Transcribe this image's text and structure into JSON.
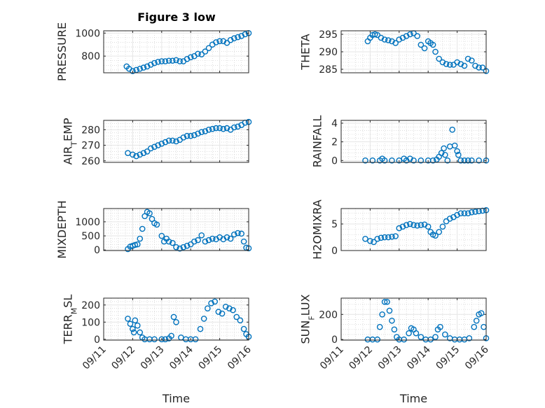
{
  "figure_title": "Figure 3 low",
  "chart_data": [
    {
      "type": "scatter",
      "ylabel": "PRESSURE",
      "xlabel": "",
      "yticks": [
        800,
        1000
      ],
      "ylim": [
        655,
        1020
      ],
      "x": [
        "09/11 19:00",
        "09/11 21:00",
        "09/12 00:00",
        "09/12 03:00",
        "09/12 06:00",
        "09/12 09:00",
        "09/12 12:00",
        "09/12 15:00",
        "09/12 18:00",
        "09/12 21:00",
        "09/13 00:00",
        "09/13 03:00",
        "09/13 06:00",
        "09/13 09:00",
        "09/13 12:00",
        "09/13 15:00",
        "09/13 18:00",
        "09/13 21:00",
        "09/14 00:00",
        "09/14 03:00",
        "09/14 06:00",
        "09/14 09:00",
        "09/14 12:00",
        "09/14 15:00",
        "09/14 18:00",
        "09/14 21:00",
        "09/15 00:00",
        "09/15 03:00",
        "09/15 06:00",
        "09/15 09:00",
        "09/15 12:00",
        "09/15 15:00",
        "09/15 18:00",
        "09/15 21:00",
        "09/16 00:00"
      ],
      "y": [
        710,
        690,
        670,
        680,
        690,
        700,
        710,
        725,
        740,
        750,
        755,
        755,
        760,
        760,
        765,
        755,
        755,
        775,
        790,
        800,
        820,
        815,
        840,
        870,
        900,
        920,
        930,
        930,
        915,
        940,
        955,
        965,
        975,
        990,
        1000
      ]
    },
    {
      "type": "scatter",
      "ylabel": "THETA",
      "xlabel": "",
      "yticks": [
        285,
        290,
        295
      ],
      "ylim": [
        284,
        296
      ],
      "x": [
        "09/11 22:00",
        "09/12 00:00",
        "09/12 02:00",
        "09/12 04:00",
        "09/12 06:00",
        "09/12 09:00",
        "09/12 12:00",
        "09/12 15:00",
        "09/12 18:00",
        "09/12 21:00",
        "09/13 00:00",
        "09/13 03:00",
        "09/13 06:00",
        "09/13 09:00",
        "09/13 12:00",
        "09/13 15:00",
        "09/13 18:00",
        "09/13 21:00",
        "09/14 00:00",
        "09/14 02:00",
        "09/14 04:00",
        "09/14 06:00",
        "09/14 09:00",
        "09/14 12:00",
        "09/14 15:00",
        "09/14 18:00",
        "09/14 21:00",
        "09/15 00:00",
        "09/15 03:00",
        "09/15 06:00",
        "09/15 09:00",
        "09/15 12:00",
        "09/15 15:00",
        "09/15 18:00",
        "09/15 21:00",
        "09/16 00:00"
      ],
      "y": [
        293,
        294,
        294.8,
        295,
        294.8,
        294,
        293.5,
        293.3,
        293,
        292.5,
        293.5,
        294,
        294.5,
        295,
        295.3,
        294.5,
        292,
        291,
        293,
        292.5,
        292,
        290,
        288,
        287,
        286.5,
        286.3,
        286.3,
        287,
        286.5,
        286,
        288,
        287.5,
        286,
        285.5,
        285.5,
        284.5
      ]
    },
    {
      "type": "scatter",
      "ylabel": "AIR_T_EMP",
      "xlabel": "",
      "yticks": [
        260,
        270,
        280
      ],
      "ylim": [
        259,
        286
      ],
      "x": [
        "09/11 20:00",
        "09/12 00:00",
        "09/12 03:00",
        "09/12 06:00",
        "09/12 09:00",
        "09/12 12:00",
        "09/12 15:00",
        "09/12 18:00",
        "09/12 21:00",
        "09/13 00:00",
        "09/13 03:00",
        "09/13 06:00",
        "09/13 09:00",
        "09/13 12:00",
        "09/13 15:00",
        "09/13 18:00",
        "09/13 21:00",
        "09/14 00:00",
        "09/14 03:00",
        "09/14 06:00",
        "09/14 09:00",
        "09/14 12:00",
        "09/14 15:00",
        "09/14 18:00",
        "09/14 21:00",
        "09/15 00:00",
        "09/15 03:00",
        "09/15 06:00",
        "09/15 09:00",
        "09/15 12:00",
        "09/15 15:00",
        "09/15 18:00",
        "09/15 21:00",
        "09/16 00:00"
      ],
      "y": [
        265,
        264,
        263,
        264,
        265,
        266,
        268,
        269,
        270,
        271,
        272,
        273,
        273,
        272.5,
        273.5,
        275,
        276,
        276,
        276.5,
        277.5,
        278.5,
        279,
        280,
        280.5,
        281,
        281,
        280.5,
        281,
        280,
        281.5,
        282,
        283,
        284.5,
        285
      ]
    },
    {
      "type": "scatter",
      "ylabel": "RAINFALL",
      "xlabel": "",
      "yticks": [
        0,
        2,
        4
      ],
      "ylim": [
        -0.2,
        4.3
      ],
      "x": [
        "09/11 20:00",
        "09/12 02:00",
        "09/12 08:00",
        "09/12 10:00",
        "09/12 12:00",
        "09/12 18:00",
        "09/13 00:00",
        "09/13 04:00",
        "09/13 06:00",
        "09/13 09:00",
        "09/13 12:00",
        "09/13 18:00",
        "09/14 00:00",
        "09/14 04:00",
        "09/14 07:00",
        "09/14 09:00",
        "09/14 11:00",
        "09/14 13:00",
        "09/14 14:00",
        "09/14 16:00",
        "09/14 18:00",
        "09/14 20:00",
        "09/14 22:00",
        "09/15 00:00",
        "09/15 01:00",
        "09/15 03:00",
        "09/15 06:00",
        "09/15 09:00",
        "09/15 12:00",
        "09/15 18:00",
        "09/16 00:00"
      ],
      "y": [
        0,
        0,
        0,
        0.2,
        0,
        0,
        0,
        0.2,
        0,
        0.2,
        0,
        0,
        0,
        0,
        0.1,
        0.4,
        0.8,
        1.3,
        0.6,
        0,
        1.5,
        3.3,
        1.6,
        1.0,
        0.6,
        0,
        0,
        0,
        0,
        0,
        0
      ]
    },
    {
      "type": "scatter",
      "ylabel": "MIXDEPTH",
      "xlabel": "",
      "yticks": [
        0,
        500,
        1000
      ],
      "ylim": [
        -20,
        1470
      ],
      "x": [
        "09/11 20:00",
        "09/11 22:00",
        "09/12 00:00",
        "09/12 02:00",
        "09/12 04:00",
        "09/12 06:00",
        "09/12 08:00",
        "09/12 10:00",
        "09/12 12:00",
        "09/12 14:00",
        "09/12 16:00",
        "09/12 18:00",
        "09/12 20:00",
        "09/13 00:00",
        "09/13 02:00",
        "09/13 04:00",
        "09/13 06:00",
        "09/13 09:00",
        "09/13 12:00",
        "09/13 15:00",
        "09/13 18:00",
        "09/13 21:00",
        "09/14 00:00",
        "09/14 03:00",
        "09/14 06:00",
        "09/14 09:00",
        "09/14 12:00",
        "09/14 15:00",
        "09/14 18:00",
        "09/14 21:00",
        "09/15 00:00",
        "09/15 03:00",
        "09/15 06:00",
        "09/15 09:00",
        "09/15 12:00",
        "09/15 15:00",
        "09/15 18:00",
        "09/15 20:00",
        "09/15 22:00",
        "09/16 00:00"
      ],
      "y": [
        30,
        120,
        150,
        180,
        200,
        400,
        750,
        1200,
        1350,
        1300,
        1100,
        950,
        900,
        500,
        300,
        400,
        300,
        250,
        100,
        50,
        100,
        150,
        200,
        300,
        350,
        520,
        300,
        350,
        400,
        380,
        450,
        380,
        450,
        400,
        550,
        600,
        580,
        300,
        80,
        60
      ]
    },
    {
      "type": "scatter",
      "ylabel": "H2OMIXRA",
      "xlabel": "",
      "yticks": [
        0,
        5
      ],
      "ylim": [
        0,
        7.9
      ],
      "x": [
        "09/11 20:00",
        "09/12 00:00",
        "09/12 03:00",
        "09/12 06:00",
        "09/12 09:00",
        "09/12 12:00",
        "09/12 15:00",
        "09/12 18:00",
        "09/12 21:00",
        "09/13 00:00",
        "09/13 03:00",
        "09/13 06:00",
        "09/13 09:00",
        "09/13 12:00",
        "09/13 15:00",
        "09/13 18:00",
        "09/13 21:00",
        "09/14 00:00",
        "09/14 02:00",
        "09/14 04:00",
        "09/14 06:00",
        "09/14 09:00",
        "09/14 12:00",
        "09/14 15:00",
        "09/14 18:00",
        "09/14 21:00",
        "09/15 00:00",
        "09/15 03:00",
        "09/15 06:00",
        "09/15 09:00",
        "09/15 12:00",
        "09/15 15:00",
        "09/15 18:00",
        "09/15 21:00",
        "09/16 00:00"
      ],
      "y": [
        2.2,
        1.8,
        1.6,
        2.2,
        2.4,
        2.5,
        2.5,
        2.6,
        2.7,
        4.2,
        4.5,
        4.8,
        5,
        4.8,
        4.7,
        4.8,
        4.9,
        4.5,
        3.5,
        3,
        2.8,
        3.5,
        4.5,
        5.5,
        6,
        6.3,
        6.7,
        7,
        7,
        7,
        7.2,
        7.3,
        7.4,
        7.5,
        7.6
      ]
    },
    {
      "type": "scatter",
      "ylabel": "TERR_M_SL",
      "xlabel": "Time",
      "yticks": [
        0,
        100,
        200
      ],
      "ylim": [
        -5,
        240
      ],
      "x": [
        "09/11 20:00",
        "09/11 22:00",
        "09/12 00:00",
        "09/12 01:00",
        "09/12 02:00",
        "09/12 04:00",
        "09/12 06:00",
        "09/12 08:00",
        "09/12 10:00",
        "09/12 14:00",
        "09/12 18:00",
        "09/13 00:00",
        "09/13 03:00",
        "09/13 06:00",
        "09/13 08:00",
        "09/13 10:00",
        "09/13 12:00",
        "09/13 16:00",
        "09/13 20:00",
        "09/14 00:00",
        "09/14 04:00",
        "09/14 08:00",
        "09/14 11:00",
        "09/14 14:00",
        "09/14 17:00",
        "09/14 20:00",
        "09/14 23:00",
        "09/15 02:00",
        "09/15 05:00",
        "09/15 08:00",
        "09/15 11:00",
        "09/15 14:00",
        "09/15 17:00",
        "09/15 20:00",
        "09/15 22:00",
        "09/16 00:00"
      ],
      "y": [
        120,
        90,
        60,
        40,
        110,
        80,
        40,
        10,
        0,
        0,
        0,
        0,
        0,
        5,
        20,
        130,
        100,
        10,
        0,
        0,
        0,
        60,
        120,
        180,
        210,
        220,
        160,
        150,
        190,
        180,
        170,
        130,
        110,
        60,
        30,
        15
      ]
    },
    {
      "type": "scatter",
      "ylabel": "SUN_F_LUX",
      "xlabel": "Time",
      "yticks": [
        0,
        200
      ],
      "ylim": [
        -5,
        330
      ],
      "x": [
        "09/11 22:00",
        "09/12 02:00",
        "09/12 06:00",
        "09/12 08:00",
        "09/12 10:00",
        "09/12 12:00",
        "09/12 14:00",
        "09/12 16:00",
        "09/12 18:00",
        "09/12 20:00",
        "09/12 22:00",
        "09/13 00:00",
        "09/13 04:00",
        "09/13 08:00",
        "09/13 10:00",
        "09/13 12:00",
        "09/13 14:00",
        "09/13 18:00",
        "09/13 22:00",
        "09/14 02:00",
        "09/14 06:00",
        "09/14 08:00",
        "09/14 10:00",
        "09/14 14:00",
        "09/14 18:00",
        "09/14 22:00",
        "09/15 02:00",
        "09/15 06:00",
        "09/15 10:00",
        "09/15 14:00",
        "09/15 16:00",
        "09/15 18:00",
        "09/15 20:00",
        "09/15 22:00",
        "09/16 00:00"
      ],
      "y": [
        0,
        0,
        0,
        100,
        200,
        300,
        300,
        230,
        150,
        80,
        20,
        0,
        0,
        50,
        90,
        80,
        50,
        20,
        0,
        0,
        20,
        80,
        100,
        40,
        10,
        0,
        0,
        0,
        10,
        100,
        150,
        200,
        210,
        100,
        10
      ]
    }
  ],
  "shared_x": {
    "ticks": [
      "09/11",
      "09/12",
      "09/13",
      "09/14",
      "09/15",
      "09/16"
    ]
  },
  "colors": {
    "marker": "#0072bd",
    "axis": "#262626",
    "grid": "#e6e6e6",
    "minor_grid": "#c8c8c8"
  }
}
